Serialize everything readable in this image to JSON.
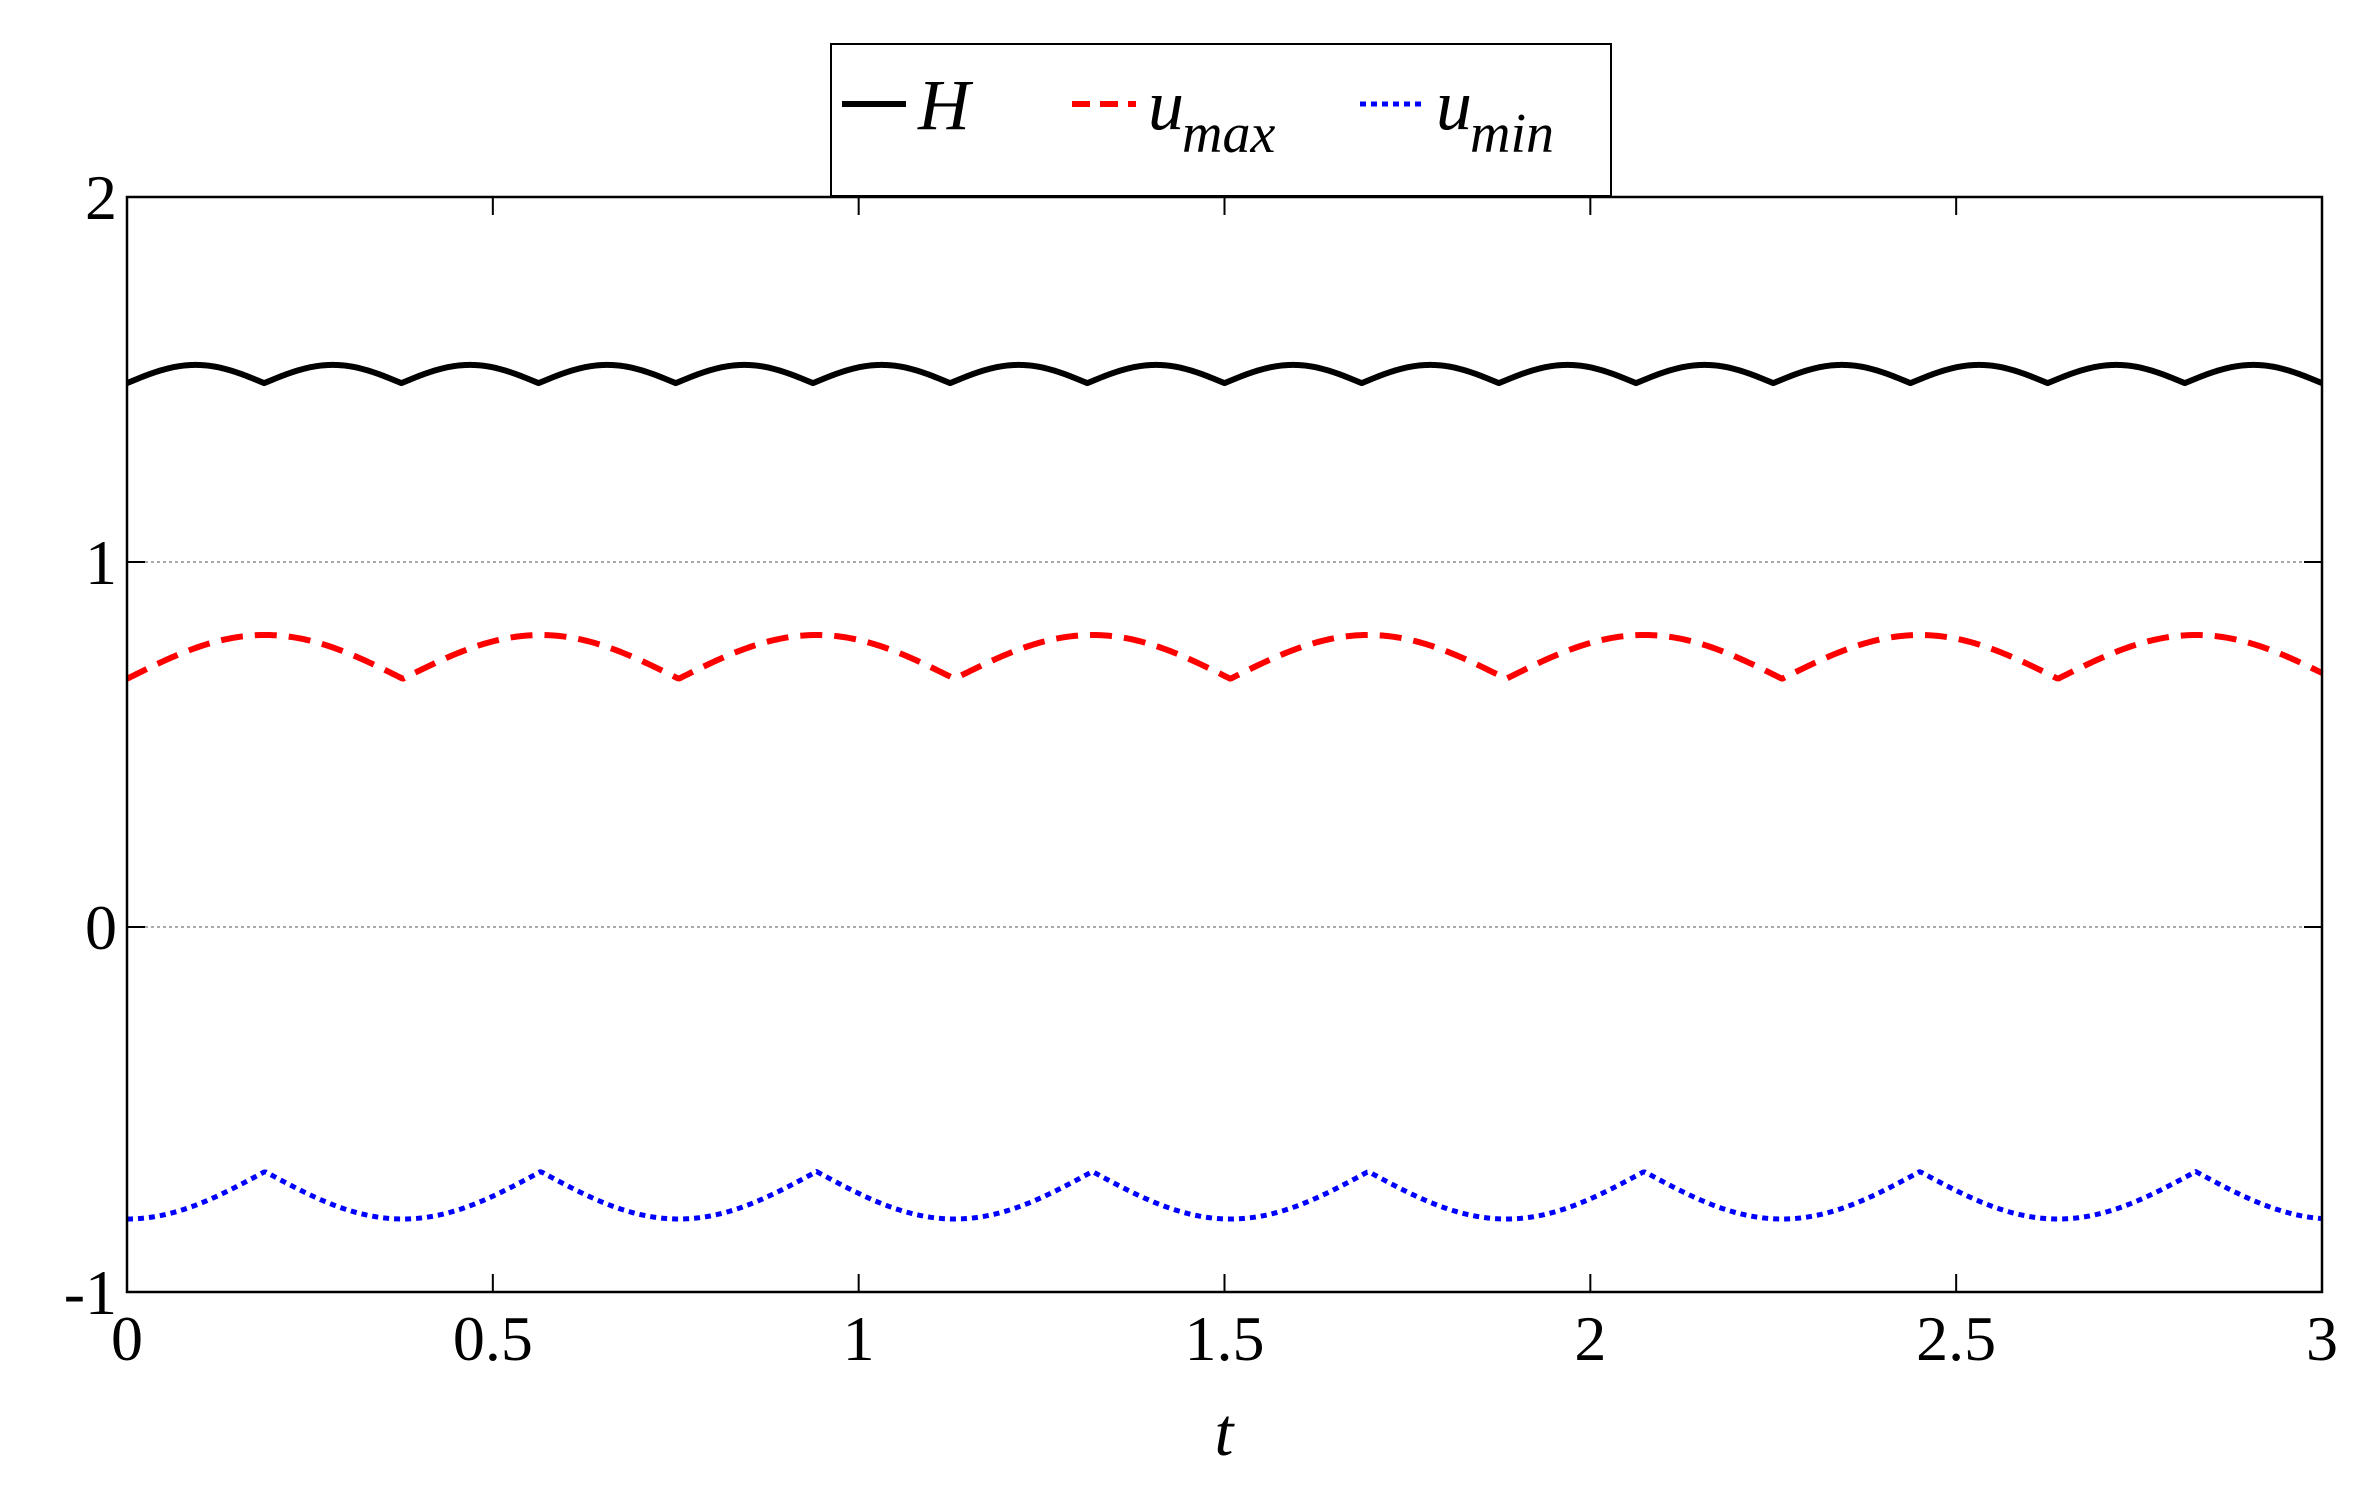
{
  "chart_data": {
    "type": "line",
    "title": "",
    "xlabel": "t",
    "ylabel": "",
    "xlim": [
      0,
      3
    ],
    "ylim": [
      -1,
      2
    ],
    "x_ticks": [
      0,
      0.5,
      1,
      1.5,
      2,
      2.5,
      3
    ],
    "x_tick_labels": [
      "0",
      "0.5",
      "1",
      "1.5",
      "2",
      "2.5",
      "3"
    ],
    "y_ticks": [
      -1,
      0,
      1,
      2
    ],
    "y_tick_labels": [
      "-1",
      "0",
      "1",
      "2"
    ],
    "gridlines_y": [
      0,
      1
    ],
    "legend_position": "top-center-outside",
    "series": [
      {
        "name": "H",
        "legend_main": "H",
        "legend_sub": "",
        "color": "#000000",
        "style": "solid",
        "period": 0.1875,
        "phase_offset": 0.0,
        "min": 1.49,
        "max": 1.54,
        "shape": "cusp-down"
      },
      {
        "name": "u_max",
        "legend_main": "u",
        "legend_sub": "max",
        "color": "#ff0000",
        "style": "dashed",
        "period": 0.377,
        "phase_offset": 0.0,
        "min": 0.68,
        "max": 0.8,
        "shape": "cusp-down"
      },
      {
        "name": "u_min",
        "legend_main": "u",
        "legend_sub": "min",
        "color": "#0000ff",
        "style": "dotted",
        "period": 0.377,
        "phase_offset": 0.1885,
        "min": -0.8,
        "max": -0.67,
        "shape": "cusp-up"
      }
    ]
  }
}
